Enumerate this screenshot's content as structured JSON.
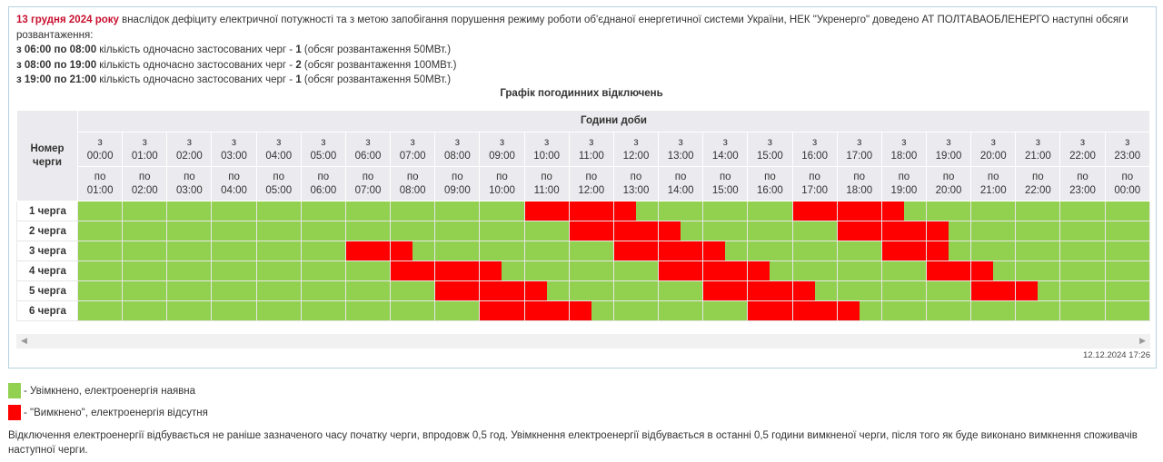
{
  "intro": {
    "date": "13 грудня 2024 року",
    "text": " внаслідок дефіциту електричної потужності та з метою запобігання порушення режиму роботи об'єднаної енергетичної системи України, НЕК \"Укренерго\" доведено АТ ПОЛТАВАОБЛЕНЕРГО наступні обсяги розвантаження:",
    "lines": [
      {
        "range": "з 06:00 по 08:00",
        "text": " кількість одночасно застосованих черг - ",
        "count": "1",
        "tail": " (обсяг розвантаження 50МВт.)"
      },
      {
        "range": "з 08:00 по 19:00",
        "text": " кількість одночасно застосованих черг - ",
        "count": "2",
        "tail": " (обсяг розвантаження 100МВт.)"
      },
      {
        "range": "з 19:00 по 21:00",
        "text": " кількість одночасно застосованих черг - ",
        "count": "1",
        "tail": " (обсяг розвантаження 50МВт.)"
      }
    ]
  },
  "table_title": "Графік погодинних відключень",
  "table": {
    "corner": "Номер черги",
    "hours_header": "Години доби",
    "from_word": "з",
    "to_word": "по",
    "hours": [
      "00:00",
      "01:00",
      "02:00",
      "03:00",
      "04:00",
      "05:00",
      "06:00",
      "07:00",
      "08:00",
      "09:00",
      "10:00",
      "11:00",
      "12:00",
      "13:00",
      "14:00",
      "15:00",
      "16:00",
      "17:00",
      "18:00",
      "19:00",
      "20:00",
      "21:00",
      "22:00",
      "23:00"
    ],
    "to_hours": [
      "01:00",
      "02:00",
      "03:00",
      "04:00",
      "05:00",
      "06:00",
      "07:00",
      "08:00",
      "09:00",
      "10:00",
      "11:00",
      "12:00",
      "13:00",
      "14:00",
      "15:00",
      "16:00",
      "17:00",
      "18:00",
      "19:00",
      "20:00",
      "21:00",
      "22:00",
      "23:00",
      "00:00"
    ],
    "queues": [
      {
        "label": "1 черга",
        "outages": [
          [
            10,
            12.5
          ],
          [
            16,
            18.5
          ]
        ]
      },
      {
        "label": "2 черга",
        "outages": [
          [
            11,
            13.5
          ],
          [
            17,
            19.5
          ]
        ]
      },
      {
        "label": "3 черга",
        "outages": [
          [
            6,
            7.5
          ],
          [
            12,
            14.5
          ],
          [
            18,
            19.5
          ]
        ]
      },
      {
        "label": "4 черга",
        "outages": [
          [
            7,
            9.5
          ],
          [
            13,
            15.5
          ],
          [
            19,
            20.5
          ]
        ]
      },
      {
        "label": "5 черга",
        "outages": [
          [
            8,
            10.5
          ],
          [
            14,
            16.5
          ],
          [
            20,
            21.5
          ]
        ]
      },
      {
        "label": "6 черга",
        "outages": [
          [
            9,
            11.5
          ],
          [
            15,
            17.5
          ]
        ]
      }
    ]
  },
  "timestamp": "12.12.2024 17:26",
  "legend": [
    {
      "color": "#92d050",
      "text": "- Увімкнено, електроенергія наявна"
    },
    {
      "color": "#ff0000",
      "text": "- \"Вимкнено\", електроенергія відсутня"
    }
  ],
  "note": "Відключення електроенергії відбувається не раніше зазначеного часу початку черги, впродовж 0,5 год. Увімкнення електроенергії відбувається в останні 0,5 години вимкненої черги, після того як буде виконано вимкнення споживачів наступної черги.",
  "colors": {
    "on": "#92d050",
    "off": "#ff0000"
  }
}
